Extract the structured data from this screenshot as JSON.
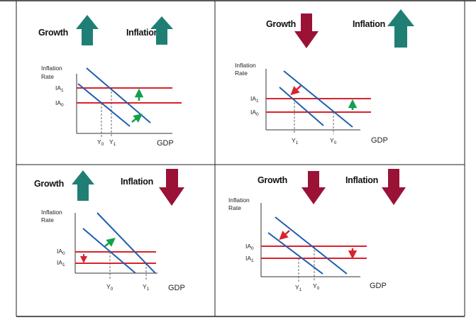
{
  "colors": {
    "up_arrow": "#1f7f74",
    "down_arrow": "#9a1236",
    "ad_line": "#1f5fae",
    "ia_line": "#d8232e",
    "arrow_green": "#12a14a",
    "arrow_red": "#d8232e"
  },
  "panels": [
    {
      "id": "top-left",
      "growth_label": "Growth",
      "inflation_label": "Inflation",
      "growth_direction": "up",
      "inflation_direction": "up",
      "ylabel_line1": "Inflation",
      "ylabel_line2": "Rate",
      "ia_upper_label": "IA",
      "ia_upper_sub": "1",
      "ia_lower_label": "IA",
      "ia_lower_sub": "0",
      "y_left_label": "Y",
      "y_left_sub": "0",
      "y_right_label": "Y",
      "y_right_sub": "1",
      "gdp_label": "GDP"
    },
    {
      "id": "top-right",
      "growth_label": "Growth",
      "inflation_label": "Inflation",
      "growth_direction": "down",
      "inflation_direction": "up",
      "ylabel_line1": "Inflation",
      "ylabel_line2": "Rate",
      "ia_upper_label": "IA",
      "ia_upper_sub": "1",
      "ia_lower_label": "IA",
      "ia_lower_sub": "0",
      "y_left_label": "Y",
      "y_left_sub": "1",
      "y_right_label": "Y",
      "y_right_sub": "0",
      "gdp_label": "GDP"
    },
    {
      "id": "bottom-left",
      "growth_label": "Growth",
      "inflation_label": "Inflation",
      "growth_direction": "up",
      "inflation_direction": "down",
      "ylabel_line1": "Inflation",
      "ylabel_line2": "Rate",
      "ia_upper_label": "IA",
      "ia_upper_sub": "0",
      "ia_lower_label": "IA",
      "ia_lower_sub": "1",
      "y_left_label": "Y",
      "y_left_sub": "0",
      "y_right_label": "Y",
      "y_right_sub": "1",
      "gdp_label": "GDP"
    },
    {
      "id": "bottom-right",
      "growth_label": "Growth",
      "inflation_label": "Inflation",
      "growth_direction": "down",
      "inflation_direction": "down",
      "ylabel_line1": "Inflation",
      "ylabel_line2": "Rate",
      "ia_upper_label": "IA",
      "ia_upper_sub": "0",
      "ia_lower_label": "IA",
      "ia_lower_sub": "1",
      "y_left_label": "Y",
      "y_left_sub": "1",
      "y_right_label": "Y",
      "y_right_sub": "0",
      "gdp_label": "GDP"
    }
  ]
}
